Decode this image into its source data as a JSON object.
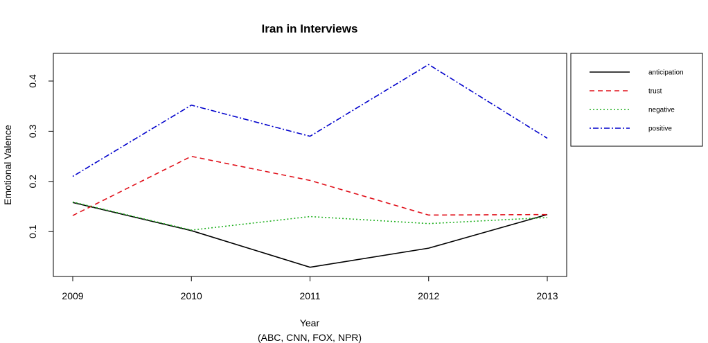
{
  "chart_data": {
    "type": "line",
    "title": "Iran in Interviews",
    "xlabel": "Year",
    "xlabel_sub": "(ABC, CNN, FOX, NPR)",
    "ylabel": "Emotional Valence",
    "x": [
      2009,
      2010,
      2011,
      2012,
      2013
    ],
    "x_ticks": [
      "2009",
      "2010",
      "2011",
      "2012",
      "2013"
    ],
    "y_ticks": [
      "0.1",
      "0.2",
      "0.3",
      "0.4"
    ],
    "ylim": [
      0.0106,
      0.4552
    ],
    "grid": false,
    "legend_position": "right",
    "series": [
      {
        "name": "anticipation",
        "color": "#000000",
        "dash": "solid",
        "values": [
          0.158,
          0.102,
          0.029,
          0.067,
          0.134
        ]
      },
      {
        "name": "trust",
        "color": "#e0101a",
        "dash": "dashed",
        "values": [
          0.132,
          0.25,
          0.202,
          0.133,
          0.134
        ]
      },
      {
        "name": "negative",
        "color": "#20b020",
        "dash": "dotted",
        "values": [
          0.159,
          0.103,
          0.13,
          0.116,
          0.128
        ]
      },
      {
        "name": "positive",
        "color": "#0000cc",
        "dash": "dotdash",
        "values": [
          0.21,
          0.352,
          0.29,
          0.433,
          0.286
        ]
      }
    ]
  }
}
